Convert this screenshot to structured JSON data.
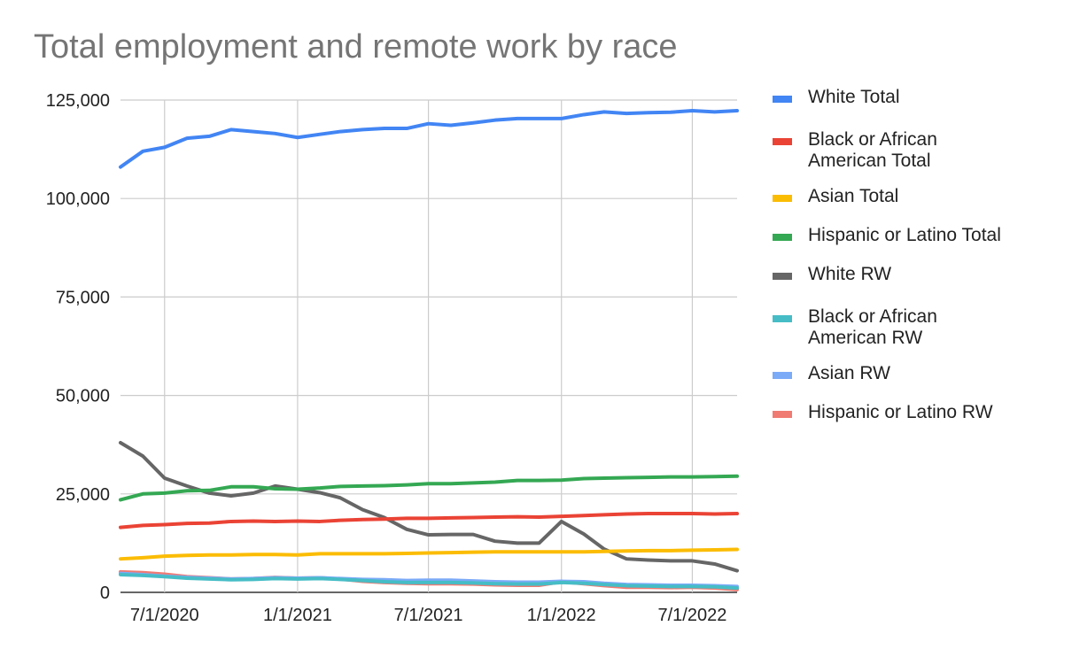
{
  "chart_data": {
    "type": "line",
    "title": "Total employment and remote work by race",
    "xlabel": "",
    "ylabel": "",
    "ylim": [
      0,
      125000
    ],
    "yticks": [
      0,
      25000,
      50000,
      75000,
      100000,
      125000
    ],
    "ytick_labels": [
      "0",
      "25,000",
      "50,000",
      "75,000",
      "100,000",
      "125,000"
    ],
    "xticks": [
      "2020-07-01",
      "2021-01-01",
      "2021-07-01",
      "2022-01-01",
      "2022-07-01"
    ],
    "xtick_labels": [
      "7/1/2020",
      "1/1/2021",
      "7/1/2021",
      "1/1/2022",
      "7/1/2022"
    ],
    "grid": true,
    "legend_position": "right",
    "x": [
      "2020-05-01",
      "2020-06-01",
      "2020-07-01",
      "2020-08-01",
      "2020-09-01",
      "2020-10-01",
      "2020-11-01",
      "2020-12-01",
      "2021-01-01",
      "2021-02-01",
      "2021-03-01",
      "2021-04-01",
      "2021-05-01",
      "2021-06-01",
      "2021-07-01",
      "2021-08-01",
      "2021-09-01",
      "2021-10-01",
      "2021-11-01",
      "2021-12-01",
      "2022-01-01",
      "2022-02-01",
      "2022-03-01",
      "2022-04-01",
      "2022-05-01",
      "2022-06-01",
      "2022-07-01",
      "2022-08-01",
      "2022-09-01"
    ],
    "series": [
      {
        "name": "White Total",
        "color": "#4285f4",
        "values": [
          108000,
          112000,
          113000,
          115300,
          115800,
          117500,
          117000,
          116500,
          115500,
          116300,
          117000,
          117500,
          117800,
          117800,
          119000,
          118600,
          119200,
          119900,
          120300,
          120300,
          120300,
          121300,
          122000,
          121600,
          121800,
          121900,
          122300,
          122000,
          122300
        ]
      },
      {
        "name": "Black or African American Total",
        "color": "#ea4335",
        "values": [
          16500,
          17000,
          17200,
          17500,
          17600,
          18000,
          18100,
          18000,
          18100,
          18000,
          18300,
          18500,
          18600,
          18800,
          18800,
          18900,
          19000,
          19100,
          19200,
          19100,
          19300,
          19500,
          19700,
          19900,
          20000,
          20000,
          20000,
          19900,
          20000
        ]
      },
      {
        "name": "Asian Total",
        "color": "#fbbc04",
        "values": [
          8500,
          8800,
          9200,
          9400,
          9500,
          9500,
          9600,
          9600,
          9500,
          9800,
          9800,
          9800,
          9800,
          9900,
          10000,
          10100,
          10200,
          10300,
          10300,
          10300,
          10300,
          10300,
          10400,
          10500,
          10600,
          10600,
          10700,
          10800,
          10900
        ]
      },
      {
        "name": "Hispanic or Latino Total",
        "color": "#34a853",
        "values": [
          23500,
          25000,
          25200,
          25800,
          25900,
          26800,
          26800,
          26300,
          26200,
          26500,
          26900,
          27000,
          27100,
          27300,
          27600,
          27600,
          27800,
          28000,
          28400,
          28400,
          28500,
          28900,
          29000,
          29100,
          29200,
          29300,
          29300,
          29400,
          29500
        ]
      },
      {
        "name": "White RW",
        "color": "#666666",
        "values": [
          38000,
          34600,
          29000,
          27000,
          25200,
          24500,
          25200,
          27000,
          26200,
          25300,
          24000,
          21000,
          19000,
          16000,
          14600,
          14700,
          14700,
          13000,
          12500,
          12500,
          18000,
          14800,
          11000,
          8500,
          8200,
          8000,
          8000,
          7200,
          5500
        ]
      },
      {
        "name": "Black or African American RW",
        "color": "#46bdc6",
        "values": [
          4500,
          4300,
          4000,
          3600,
          3400,
          3200,
          3300,
          3500,
          3400,
          3500,
          3300,
          3000,
          2700,
          2500,
          2500,
          2500,
          2400,
          2200,
          2100,
          2100,
          2500,
          2300,
          2000,
          1700,
          1600,
          1500,
          1500,
          1400,
          1100
        ]
      },
      {
        "name": "Asian RW",
        "color": "#7baaf7",
        "values": [
          4800,
          4500,
          4100,
          3800,
          3600,
          3400,
          3500,
          3700,
          3600,
          3700,
          3500,
          3300,
          3200,
          3000,
          3100,
          3100,
          2900,
          2700,
          2600,
          2600,
          2800,
          2700,
          2300,
          2000,
          1900,
          1800,
          1800,
          1700,
          1500
        ]
      },
      {
        "name": "Hispanic or Latino RW",
        "color": "#f07b72",
        "values": [
          5200,
          5000,
          4600,
          4000,
          3700,
          3400,
          3500,
          3800,
          3600,
          3700,
          3400,
          2800,
          2500,
          2300,
          2200,
          2200,
          2100,
          1900,
          1800,
          1800,
          2700,
          2200,
          1700,
          1300,
          1300,
          1200,
          1300,
          1100,
          700
        ]
      }
    ]
  },
  "legend": {
    "items": [
      {
        "label": "White Total",
        "color": "#4285f4"
      },
      {
        "label": "Black or African American Total",
        "color": "#ea4335"
      },
      {
        "label": "Asian Total",
        "color": "#fbbc04"
      },
      {
        "label": "Hispanic or Latino Total",
        "color": "#34a853"
      },
      {
        "label": "White RW",
        "color": "#666666"
      },
      {
        "label": "Black or African American RW",
        "color": "#46bdc6"
      },
      {
        "label": "Asian RW",
        "color": "#7baaf7"
      },
      {
        "label": "Hispanic or Latino RW",
        "color": "#f07b72"
      }
    ]
  }
}
